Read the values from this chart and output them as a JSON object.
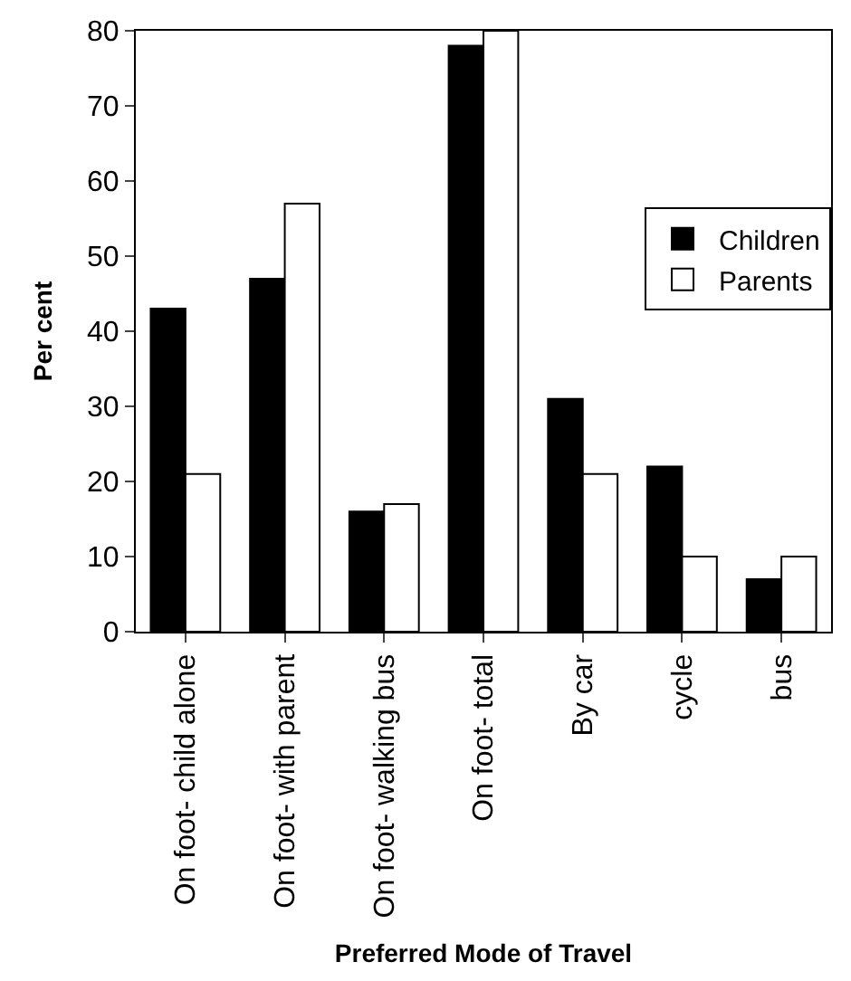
{
  "chart_data": {
    "type": "bar",
    "xlabel": "Preferred Mode of Travel",
    "ylabel": "Per cent",
    "categories": [
      "On foot- child alone",
      "On foot- with parent",
      "On foot- walking bus",
      "On foot- total",
      "By car",
      "cycle",
      "bus"
    ],
    "series": [
      {
        "name": "Children",
        "color": "#000000",
        "values": [
          43,
          47,
          16,
          78,
          31,
          22,
          7
        ]
      },
      {
        "name": "Parents",
        "color": "#ffffff",
        "values": [
          21,
          57,
          17,
          80,
          21,
          10,
          10
        ]
      }
    ],
    "ylim": [
      0,
      80
    ],
    "yticks": [
      0,
      10,
      20,
      30,
      40,
      50,
      60,
      70,
      80
    ],
    "grid": false,
    "legend": "right"
  }
}
